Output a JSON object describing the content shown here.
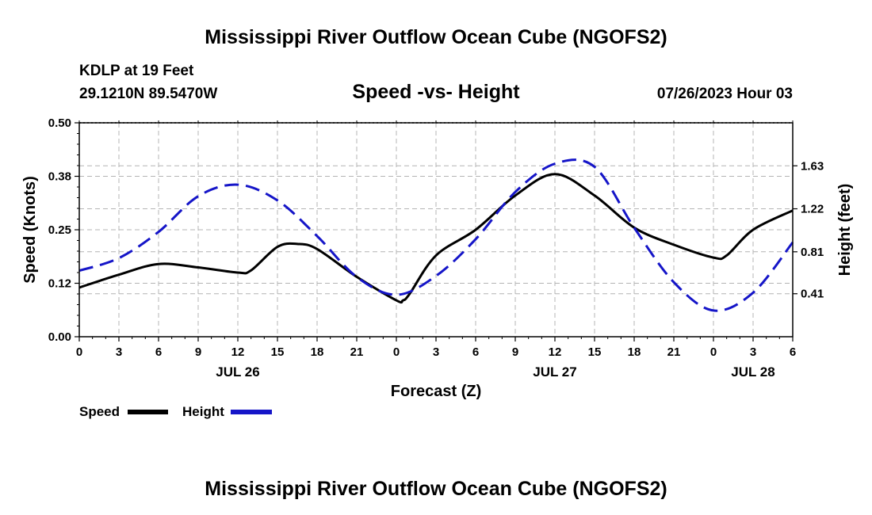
{
  "page": {
    "title": "Mississippi River Outflow Ocean Cube (NGOFS2)",
    "station": "KDLP at 19 Feet",
    "location": "29.1210N  89.5470W",
    "timestamp": "07/26/2023 Hour 03",
    "footer_title": "Mississippi River Outflow Ocean Cube (NGOFS2)"
  },
  "colors": {
    "speed": "#000000",
    "height": "#1515c8",
    "grid": "#b4b4b4",
    "axis": "#000000"
  },
  "chart_data": {
    "type": "line",
    "title": "Speed -vs- Height",
    "xlabel": "Forecast (Z)",
    "ylabel_left": "Speed (Knots)",
    "ylabel_right": "Height (feet)",
    "x_range": [
      0,
      54
    ],
    "x_tick_step": 3,
    "x_tick_labels": [
      "0",
      "3",
      "6",
      "9",
      "12",
      "15",
      "18",
      "21",
      "0",
      "3",
      "6",
      "9",
      "12",
      "15",
      "18",
      "21",
      "0",
      "3",
      "6"
    ],
    "date_labels": [
      {
        "label": "JUL 26",
        "x": 12
      },
      {
        "label": "JUL 27",
        "x": 36
      },
      {
        "label": "JUL 28",
        "x": 51
      }
    ],
    "y_left": {
      "range": [
        0,
        0.5
      ],
      "ticks": [
        0,
        0.125,
        0.25,
        0.375,
        0.5
      ],
      "tick_labels": [
        "0.00",
        "0.12",
        "0.25",
        "0.38",
        "0.50"
      ]
    },
    "y_right": {
      "range": [
        0,
        2.04
      ],
      "ticks": [
        0.41,
        0.81,
        1.22,
        1.63
      ],
      "tick_labels": [
        "0.41",
        "0.81",
        "1.22",
        "1.63"
      ]
    },
    "grid": true,
    "legend_position": "bottom-left",
    "series": [
      {
        "name": "Speed",
        "axis": "left",
        "style": "solid",
        "x": [
          0,
          3,
          6,
          9,
          12,
          13,
          15,
          16.5,
          18,
          21,
          24,
          24.5,
          25,
          27,
          30,
          33,
          36,
          39,
          42,
          45,
          48,
          49,
          51,
          54
        ],
        "y": [
          0.115,
          0.145,
          0.17,
          0.162,
          0.15,
          0.155,
          0.21,
          0.217,
          0.205,
          0.14,
          0.085,
          0.085,
          0.1,
          0.19,
          0.25,
          0.33,
          0.38,
          0.33,
          0.255,
          0.215,
          0.185,
          0.19,
          0.25,
          0.295
        ]
      },
      {
        "name": "Height",
        "axis": "right",
        "style": "dashed",
        "x": [
          0,
          3,
          6,
          9,
          12,
          15,
          18,
          21,
          24,
          27,
          30,
          33,
          36,
          39,
          42,
          45,
          48,
          51,
          54
        ],
        "y": [
          0.63,
          0.75,
          1.0,
          1.34,
          1.45,
          1.3,
          0.96,
          0.57,
          0.4,
          0.58,
          0.93,
          1.38,
          1.65,
          1.62,
          1.04,
          0.52,
          0.25,
          0.42,
          0.9
        ]
      }
    ]
  }
}
